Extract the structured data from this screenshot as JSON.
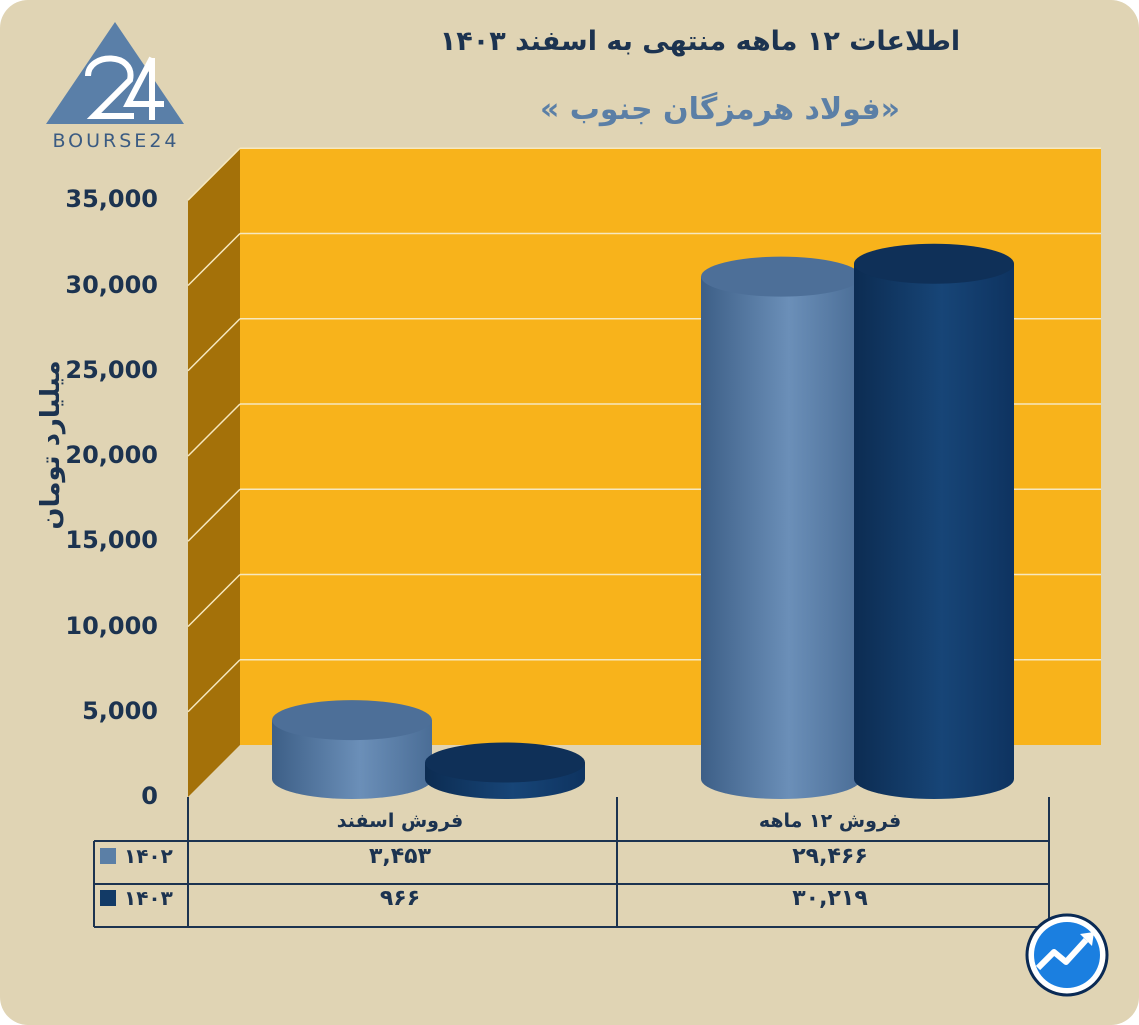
{
  "header": {
    "title": "اطلاعات ۱۲ ماهه منتهی به اسفند ۱۴۰۳",
    "subtitle": "«فولاد هرمزگان جنوب »"
  },
  "logo": {
    "text": "BOURSE24"
  },
  "colors": {
    "background": "#e0d4b4",
    "plot_back": "#f8b31b",
    "plot_side": "#a47109",
    "series_1402": "#5b7fa6",
    "series_1403": "#123a66",
    "text": "#1c3350"
  },
  "chart_data": {
    "type": "bar",
    "categories": [
      "فروش اسفند",
      "فروش ۱۲ ماهه"
    ],
    "series": [
      {
        "name": "۱۴۰۲",
        "values": [
          3453,
          29466
        ],
        "labels": [
          "۳,۴۵۳",
          "۲۹,۴۶۶"
        ]
      },
      {
        "name": "۱۴۰۳",
        "values": [
          966,
          30219
        ],
        "labels": [
          "۹۶۶",
          "۳۰,۲۱۹"
        ]
      }
    ],
    "ylabel": "میلیارد تومان",
    "ylim": [
      0,
      35000
    ],
    "yticks": [
      0,
      5000,
      10000,
      15000,
      20000,
      25000,
      30000,
      35000
    ],
    "ytick_labels": [
      "0",
      "5,000",
      "10,000",
      "15,000",
      "20,000",
      "25,000",
      "30,000",
      "35,000"
    ],
    "grid": true,
    "legend": "data-table-left"
  },
  "badge_icon": "trend-up-icon"
}
